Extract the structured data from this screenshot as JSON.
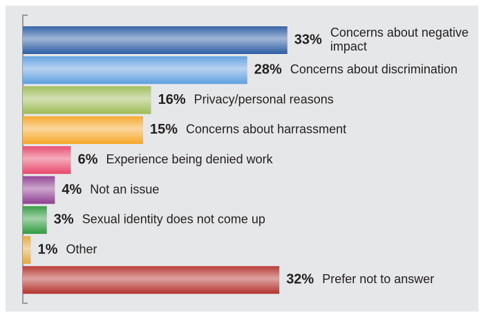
{
  "chart_data": {
    "type": "bar",
    "orientation": "horizontal",
    "categories": [
      "Concerns about negative impact",
      "Concerns about discrimination",
      "Privacy/personal reasons",
      "Concerns about harrassment",
      "Experience being denied work",
      "Not an issue",
      "Sexual identity does not come up",
      "Other",
      "Prefer not to answer"
    ],
    "values": [
      33,
      28,
      16,
      15,
      6,
      4,
      3,
      1,
      32
    ],
    "value_labels": [
      "33%",
      "28%",
      "16%",
      "15%",
      "6%",
      "4%",
      "3%",
      "1%",
      "32%"
    ],
    "colors": [
      "#2b5ca3",
      "#5e9ee0",
      "#9dbb55",
      "#f6a625",
      "#e8466b",
      "#8e3d90",
      "#2f9a3c",
      "#e4a83c",
      "#b3322c"
    ]
  }
}
